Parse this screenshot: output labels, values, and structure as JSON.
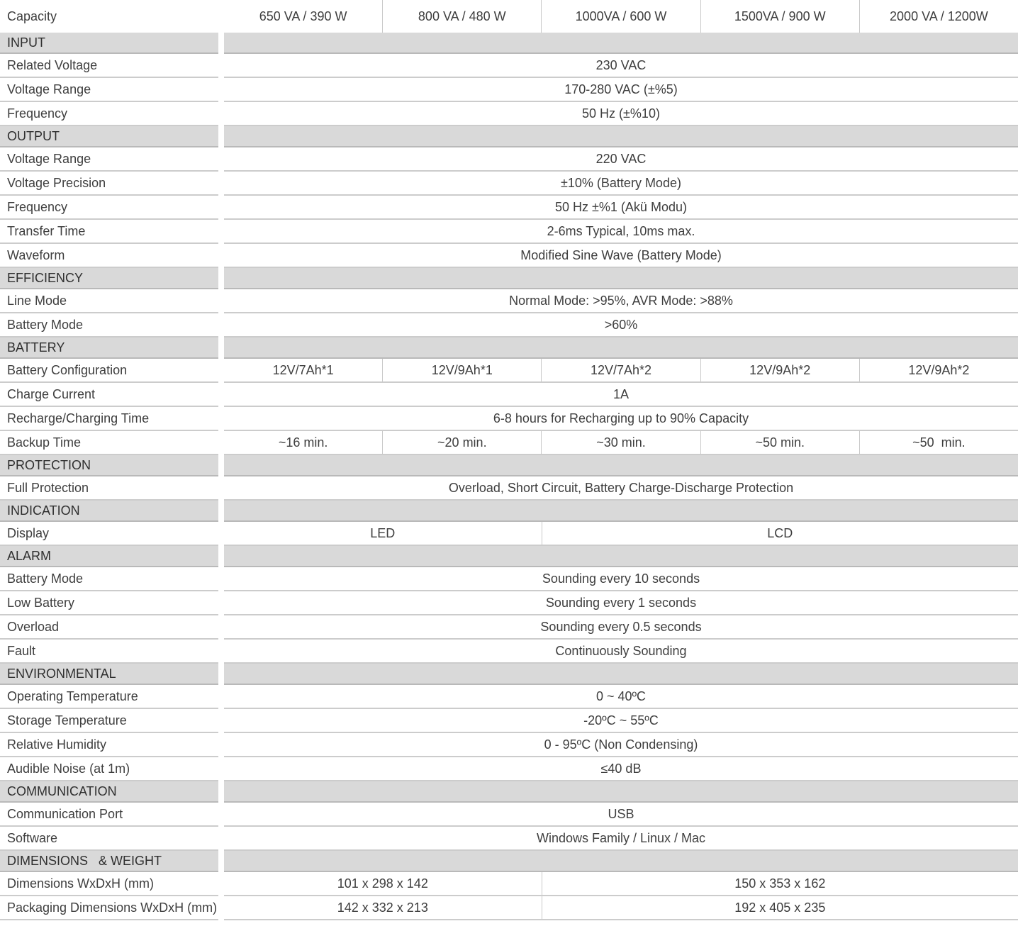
{
  "table": {
    "header": {
      "label": "Capacity",
      "columns": [
        "650 VA / 390 W",
        "800 VA / 480 W",
        "1000VA / 600 W",
        "1500VA / 900 W",
        "2000 VA / 1200W"
      ]
    },
    "rows": [
      {
        "type": "section",
        "label": "INPUT"
      },
      {
        "type": "full",
        "label": "Related Voltage",
        "value": "230 VAC"
      },
      {
        "type": "full",
        "label": "Voltage Range",
        "value": "170-280 VAC (±%5)"
      },
      {
        "type": "full",
        "label": "Frequency",
        "value": "50 Hz (±%10)"
      },
      {
        "type": "section",
        "label": "OUTPUT"
      },
      {
        "type": "full",
        "label": "Voltage Range",
        "value": "220 VAC"
      },
      {
        "type": "full",
        "label": "Voltage Precision",
        "value": "±10% (Battery Mode)"
      },
      {
        "type": "full",
        "label": "Frequency",
        "value": "50 Hz ±%1 (Akü Modu)"
      },
      {
        "type": "full",
        "label": "Transfer Time",
        "value": "2-6ms Typical, 10ms max."
      },
      {
        "type": "full",
        "label": "Waveform",
        "value": "Modified Sine Wave (Battery Mode)"
      },
      {
        "type": "section",
        "label": "EFFICIENCY"
      },
      {
        "type": "full",
        "label": "Line Mode",
        "value": "Normal Mode: >95%, AVR Mode: >88%"
      },
      {
        "type": "full",
        "label": "Battery Mode",
        "value": ">60%"
      },
      {
        "type": "section",
        "label": "BATTERY"
      },
      {
        "type": "cells",
        "label": "Battery Configuration",
        "cells": [
          "12V/7Ah*1",
          "12V/9Ah*1",
          "12V/7Ah*2",
          "12V/9Ah*2",
          "12V/9Ah*2"
        ]
      },
      {
        "type": "full",
        "label": "Charge Current",
        "value": "1A"
      },
      {
        "type": "full",
        "label": "Recharge/Charging Time",
        "value": "6-8 hours for Recharging up to 90% Capacity"
      },
      {
        "type": "cells",
        "label": "Backup Time",
        "cells": [
          "~16 min.",
          "~20 min.",
          "~30 min.",
          "~50 min.",
          "~50  min."
        ]
      },
      {
        "type": "section",
        "label": "PROTECTION"
      },
      {
        "type": "full",
        "label": "Full Protection",
        "value": "Overload, Short Circuit, Battery Charge-Discharge Protection"
      },
      {
        "type": "section",
        "label": "INDICATION"
      },
      {
        "type": "split",
        "label": "Display",
        "parts": [
          {
            "value": "LED",
            "cols": 2
          },
          {
            "value": "LCD",
            "cols": 3
          }
        ]
      },
      {
        "type": "section",
        "label": "ALARM"
      },
      {
        "type": "full",
        "label": "Battery Mode",
        "value": "Sounding every 10 seconds"
      },
      {
        "type": "full",
        "label": "Low Battery",
        "value": "Sounding every 1 seconds"
      },
      {
        "type": "full",
        "label": "Overload",
        "value": "Sounding every 0.5 seconds"
      },
      {
        "type": "full",
        "label": "Fault",
        "value": "Continuously Sounding"
      },
      {
        "type": "section",
        "label": "ENVIRONMENTAL"
      },
      {
        "type": "full",
        "label": "Operating Temperature",
        "value": "0 ~ 40ºC"
      },
      {
        "type": "full",
        "label": "Storage Temperature",
        "value": "-20ºC ~ 55ºC"
      },
      {
        "type": "full",
        "label": "Relative Humidity",
        "value": "0 - 95ºC (Non Condensing)"
      },
      {
        "type": "full",
        "label": "Audible Noise (at 1m)",
        "value": "≤40 dB"
      },
      {
        "type": "section",
        "label": "COMMUNICATION"
      },
      {
        "type": "full",
        "label": "Communication Port",
        "value": "USB"
      },
      {
        "type": "full",
        "label": "Software",
        "value": "Windows Family / Linux / Mac"
      },
      {
        "type": "section",
        "label": "DIMENSIONS   & WEIGHT"
      },
      {
        "type": "split",
        "label": "Dimensions WxDxH (mm)",
        "parts": [
          {
            "value": "101 x 298 x 142",
            "cols": 2
          },
          {
            "value": "150 x 353 x 162",
            "cols": 3
          }
        ]
      },
      {
        "type": "split",
        "label": "Packaging Dimensions WxDxH (mm)",
        "parts": [
          {
            "value": "142 x 332 x 213",
            "cols": 2
          },
          {
            "value": "192 x 405 x 235",
            "cols": 3
          }
        ]
      }
    ],
    "colors": {
      "section_bg": "#d9d9d9",
      "section_border": "#b9b9b9",
      "border": "#cccccc",
      "divider": "#c9c9c9",
      "text": "#3e3e3e",
      "section_text": "#2f2f2f"
    }
  }
}
